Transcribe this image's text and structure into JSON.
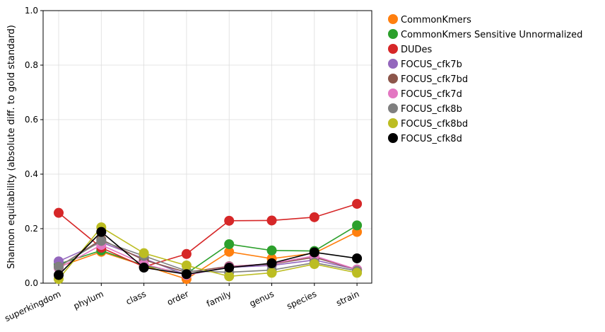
{
  "chart_data": {
    "type": "line",
    "title": "",
    "xlabel": "",
    "ylabel": "Shannon equitability (absolute diff. to gold standard)",
    "ylim": [
      0,
      1
    ],
    "yticks": [
      "0.0",
      "0.2",
      "0.4",
      "0.6",
      "0.8",
      "1.0"
    ],
    "grid": true,
    "legend_position": "outside-right",
    "categories": [
      "superkingdom",
      "phylum",
      "class",
      "order",
      "family",
      "genus",
      "species",
      "strain"
    ],
    "series": [
      {
        "name": "CommonKmers",
        "color": "#ff7f0e",
        "values": [
          0.06,
          0.115,
          0.065,
          0.015,
          0.115,
          0.09,
          0.11,
          0.188
        ]
      },
      {
        "name": "CommonKmers Sensitive Unnormalized",
        "color": "#2ca02c",
        "values": [
          0.07,
          0.12,
          0.065,
          0.035,
          0.143,
          0.12,
          0.118,
          0.212
        ]
      },
      {
        "name": "DUDes",
        "color": "#d62728",
        "values": [
          0.258,
          0.13,
          0.06,
          0.107,
          0.229,
          0.23,
          0.242,
          0.291
        ]
      },
      {
        "name": "FOCUS_cfk7b",
        "color": "#9467bd",
        "values": [
          0.08,
          0.15,
          0.09,
          0.03,
          0.058,
          0.065,
          0.085,
          0.05
        ]
      },
      {
        "name": "FOCUS_cfk7bd",
        "color": "#8c564b",
        "values": [
          0.06,
          0.16,
          0.085,
          0.04,
          0.062,
          0.07,
          0.095,
          0.05
        ]
      },
      {
        "name": "FOCUS_cfk7d",
        "color": "#e377c2",
        "values": [
          0.055,
          0.14,
          0.07,
          0.03,
          0.06,
          0.072,
          0.1,
          0.05
        ]
      },
      {
        "name": "FOCUS_cfk8b",
        "color": "#7f7f7f",
        "values": [
          0.06,
          0.155,
          0.1,
          0.045,
          0.04,
          0.048,
          0.075,
          0.045
        ]
      },
      {
        "name": "FOCUS_cfk8bd",
        "color": "#bcbd22",
        "values": [
          0.015,
          0.205,
          0.11,
          0.065,
          0.025,
          0.038,
          0.07,
          0.038
        ]
      },
      {
        "name": "FOCUS_cfk8d",
        "color": "#000000",
        "values": [
          0.03,
          0.188,
          0.057,
          0.033,
          0.057,
          0.073,
          0.113,
          0.091
        ]
      }
    ]
  }
}
